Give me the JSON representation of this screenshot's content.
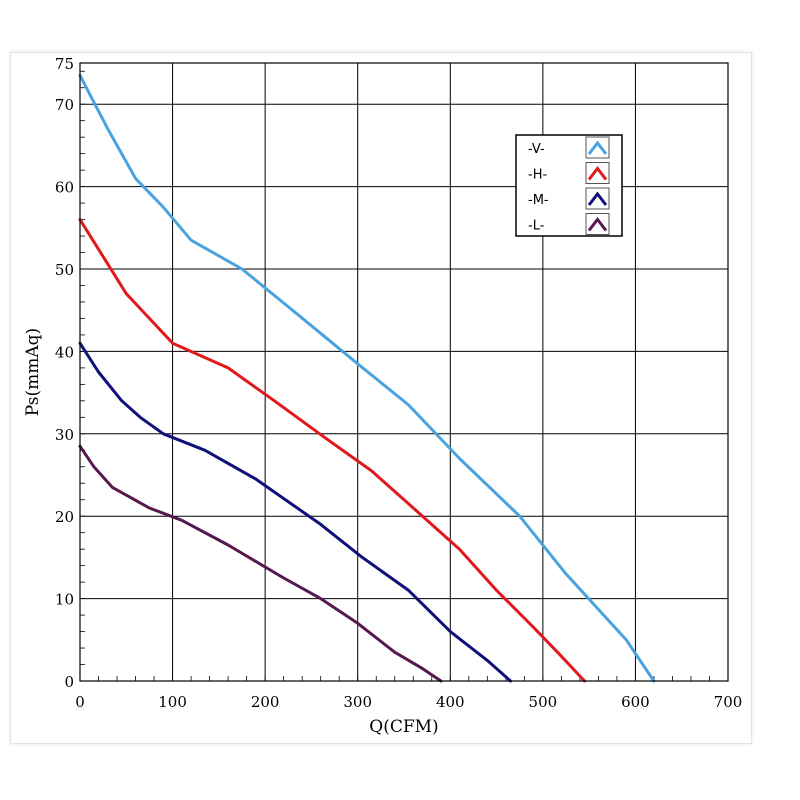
{
  "chart_data": {
    "type": "line",
    "xlabel": "Q(CFM)",
    "ylabel": "Ps(mmAq)",
    "xlim": [
      0,
      700
    ],
    "ylim": [
      0,
      75
    ],
    "xticks": [
      0,
      100,
      200,
      300,
      400,
      500,
      600,
      700
    ],
    "yticks": [
      0,
      10,
      20,
      30,
      40,
      50,
      60,
      70,
      75
    ],
    "grid": true,
    "legend_position": "top-right",
    "series": [
      {
        "name": "-V-",
        "color": "#4aa3e0",
        "points": [
          [
            0,
            73.5
          ],
          [
            30,
            67
          ],
          [
            60,
            61
          ],
          [
            90,
            57.5
          ],
          [
            120,
            53.5
          ],
          [
            175,
            50
          ],
          [
            235,
            44.5
          ],
          [
            300,
            38.5
          ],
          [
            355,
            33.5
          ],
          [
            410,
            27
          ],
          [
            475,
            20
          ],
          [
            525,
            13
          ],
          [
            590,
            5
          ],
          [
            620,
            0
          ]
        ]
      },
      {
        "name": "-H-",
        "color": "#e0191c",
        "points": [
          [
            0,
            56
          ],
          [
            25,
            51.5
          ],
          [
            50,
            47
          ],
          [
            75,
            44
          ],
          [
            100,
            41
          ],
          [
            160,
            38
          ],
          [
            210,
            34
          ],
          [
            265,
            29.5
          ],
          [
            315,
            25.5
          ],
          [
            360,
            21
          ],
          [
            410,
            16
          ],
          [
            450,
            11
          ],
          [
            490,
            6.5
          ],
          [
            520,
            3
          ],
          [
            545,
            0
          ]
        ]
      },
      {
        "name": "-M-",
        "color": "#10107a",
        "points": [
          [
            0,
            41
          ],
          [
            20,
            37.5
          ],
          [
            45,
            34
          ],
          [
            65,
            32
          ],
          [
            90,
            30
          ],
          [
            135,
            28
          ],
          [
            190,
            24.5
          ],
          [
            260,
            19
          ],
          [
            305,
            15
          ],
          [
            355,
            11
          ],
          [
            400,
            6
          ],
          [
            440,
            2.5
          ],
          [
            465,
            0
          ]
        ]
      },
      {
        "name": "-L-",
        "color": "#56184f",
        "points": [
          [
            0,
            28.5
          ],
          [
            15,
            26
          ],
          [
            35,
            23.5
          ],
          [
            75,
            21
          ],
          [
            110,
            19.5
          ],
          [
            160,
            16.5
          ],
          [
            220,
            12.5
          ],
          [
            260,
            10
          ],
          [
            300,
            7
          ],
          [
            340,
            3.5
          ],
          [
            370,
            1.5
          ],
          [
            390,
            0
          ]
        ]
      }
    ]
  }
}
